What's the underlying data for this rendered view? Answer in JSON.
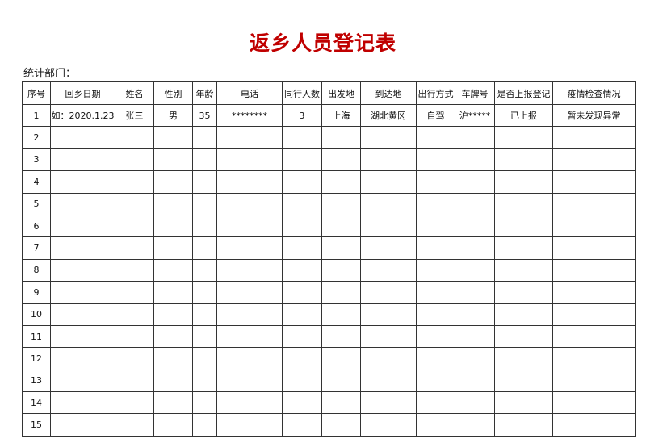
{
  "title": "返乡人员登记表",
  "dept_label": "统计部门：",
  "columns": [
    "序号",
    "回乡日期",
    "姓名",
    "性别",
    "年龄",
    "电话",
    "同行人数",
    "出发地",
    "到达地",
    "出行方式",
    "车牌号",
    "是否上报登记",
    "疫情检查情况"
  ],
  "rows": [
    [
      "1",
      "如：2020.1.23",
      "张三",
      "男",
      "35",
      "********",
      "3",
      "上海",
      "湖北黄冈",
      "自驾",
      "沪*****",
      "已上报",
      "暂未发现异常"
    ],
    [
      "2"
    ],
    [
      "3"
    ],
    [
      "4"
    ],
    [
      "5"
    ],
    [
      "6"
    ],
    [
      "7"
    ],
    [
      "8"
    ],
    [
      "9"
    ],
    [
      "10"
    ],
    [
      "11"
    ],
    [
      "12"
    ],
    [
      "13"
    ],
    [
      "14"
    ],
    [
      "15"
    ]
  ]
}
